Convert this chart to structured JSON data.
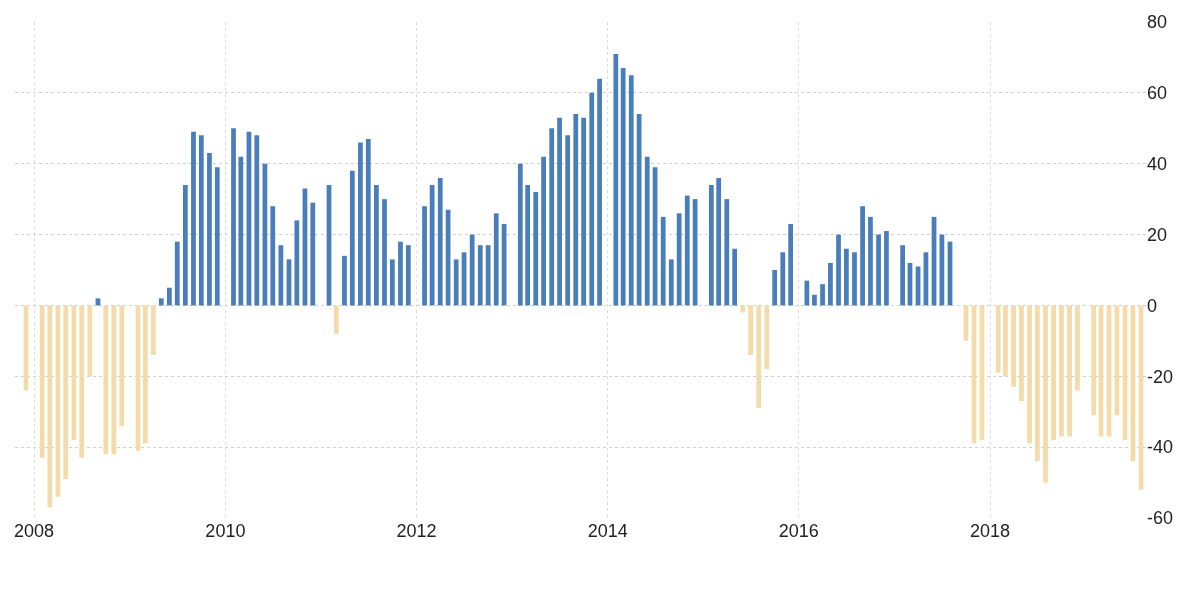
{
  "chart_data": {
    "type": "bar",
    "x": [
      "2007-12",
      "2008-01",
      "2008-02",
      "2008-03",
      "2008-04",
      "2008-05",
      "2008-06",
      "2008-07",
      "2008-08",
      "2008-09",
      "2008-10",
      "2008-11",
      "2008-12",
      "2009-01",
      "2009-02",
      "2009-03",
      "2009-04",
      "2009-05",
      "2009-06",
      "2009-07",
      "2009-08",
      "2009-09",
      "2009-10",
      "2009-11",
      "2009-12",
      "2010-01",
      "2010-02",
      "2010-03",
      "2010-04",
      "2010-05",
      "2010-06",
      "2010-07",
      "2010-08",
      "2010-09",
      "2010-10",
      "2010-11",
      "2010-12",
      "2011-01",
      "2011-02",
      "2011-03",
      "2011-04",
      "2011-05",
      "2011-06",
      "2011-07",
      "2011-08",
      "2011-09",
      "2011-10",
      "2011-11",
      "2011-12",
      "2012-01",
      "2012-02",
      "2012-03",
      "2012-04",
      "2012-05",
      "2012-06",
      "2012-07",
      "2012-08",
      "2012-09",
      "2012-10",
      "2012-11",
      "2012-12",
      "2013-01",
      "2013-02",
      "2013-03",
      "2013-04",
      "2013-05",
      "2013-06",
      "2013-07",
      "2013-08",
      "2013-09",
      "2013-10",
      "2013-11",
      "2013-12",
      "2014-01",
      "2014-02",
      "2014-03",
      "2014-04",
      "2014-05",
      "2014-06",
      "2014-07",
      "2014-08",
      "2014-09",
      "2014-10",
      "2014-11",
      "2014-12",
      "2015-01",
      "2015-02",
      "2015-03",
      "2015-04",
      "2015-05",
      "2015-06",
      "2015-07",
      "2015-08",
      "2015-09",
      "2015-10",
      "2015-11",
      "2015-12",
      "2016-01",
      "2016-02",
      "2016-03",
      "2016-04",
      "2016-05",
      "2016-06",
      "2016-07",
      "2016-08",
      "2016-09",
      "2016-10",
      "2016-11",
      "2016-12",
      "2017-01",
      "2017-02",
      "2017-03",
      "2017-04",
      "2017-05",
      "2017-06",
      "2017-07",
      "2017-08",
      "2017-09",
      "2017-10",
      "2017-11",
      "2017-12",
      "2018-01",
      "2018-02",
      "2018-03",
      "2018-04",
      "2018-05",
      "2018-06",
      "2018-07",
      "2018-08",
      "2018-09",
      "2018-10",
      "2018-11",
      "2018-12",
      "2019-01",
      "2019-02",
      "2019-03",
      "2019-04",
      "2019-05",
      "2019-06",
      "2019-07",
      "2019-08"
    ],
    "values": [
      -24,
      null,
      -43,
      -57,
      -54,
      -49,
      -38,
      -43,
      -20,
      2,
      -42,
      -42,
      -34,
      null,
      -41,
      -39,
      -14,
      2,
      5,
      18,
      34,
      49,
      48,
      43,
      39,
      null,
      50,
      42,
      49,
      48,
      40,
      28,
      17,
      13,
      24,
      33,
      29,
      null,
      34,
      -8,
      14,
      38,
      46,
      47,
      34,
      30,
      13,
      18,
      17,
      null,
      28,
      34,
      36,
      27,
      13,
      15,
      20,
      17,
      17,
      26,
      23,
      null,
      40,
      34,
      32,
      42,
      50,
      53,
      48,
      54,
      53,
      60,
      64,
      null,
      71,
      67,
      65,
      54,
      42,
      39,
      25,
      13,
      26,
      31,
      30,
      null,
      34,
      36,
      30,
      16,
      -2,
      -14,
      -29,
      -18,
      10,
      15,
      23,
      null,
      7,
      3,
      6,
      12,
      20,
      16,
      15,
      28,
      25,
      20,
      21,
      null,
      17,
      12,
      11,
      15,
      25,
      20,
      18,
      null,
      -10,
      -39,
      -38,
      null,
      -19,
      -20,
      -23,
      -27,
      -39,
      -44,
      -50,
      -38,
      -37,
      -37,
      -24,
      null,
      -31,
      -37,
      -37,
      -31,
      -38,
      -44,
      -52
    ],
    "colors": [
      "#f3dcaa",
      "#4a7ebb",
      "#f3dcaa",
      "#f3dcaa",
      "#f3dcaa",
      "#f3dcaa",
      "#f3dcaa",
      "#f3dcaa",
      "#f3dcaa",
      "#4a7ebb",
      "#f3dcaa",
      "#f3dcaa",
      "#f3dcaa",
      "#4a7ebb",
      "#f3dcaa",
      "#f3dcaa",
      "#f3dcaa",
      "#4a7ebb",
      "#4a7ebb",
      "#4a7ebb",
      "#4a7ebb",
      "#4a7ebb",
      "#4a7ebb",
      "#4a7ebb",
      "#4a7ebb",
      "#4a7ebb",
      "#4a7ebb",
      "#4a7ebb",
      "#4a7ebb",
      "#4a7ebb",
      "#4a7ebb",
      "#4a7ebb",
      "#4a7ebb",
      "#4a7ebb",
      "#4a7ebb",
      "#4a7ebb",
      "#4a7ebb",
      "#4a7ebb",
      "#4a7ebb",
      "#f3dcaa",
      "#4a7ebb",
      "#4a7ebb",
      "#4a7ebb",
      "#4a7ebb",
      "#4a7ebb",
      "#4a7ebb",
      "#4a7ebb",
      "#4a7ebb",
      "#4a7ebb",
      "#4a7ebb",
      "#4a7ebb",
      "#4a7ebb",
      "#4a7ebb",
      "#4a7ebb",
      "#4a7ebb",
      "#4a7ebb",
      "#4a7ebb",
      "#4a7ebb",
      "#4a7ebb",
      "#4a7ebb",
      "#4a7ebb",
      "#4a7ebb",
      "#4a7ebb",
      "#4a7ebb",
      "#4a7ebb",
      "#4a7ebb",
      "#4a7ebb",
      "#4a7ebb",
      "#4a7ebb",
      "#4a7ebb",
      "#4a7ebb",
      "#4a7ebb",
      "#4a7ebb",
      "#4a7ebb",
      "#4a7ebb",
      "#4a7ebb",
      "#4a7ebb",
      "#4a7ebb",
      "#4a7ebb",
      "#4a7ebb",
      "#4a7ebb",
      "#4a7ebb",
      "#4a7ebb",
      "#4a7ebb",
      "#4a7ebb",
      "#4a7ebb",
      "#4a7ebb",
      "#4a7ebb",
      "#4a7ebb",
      "#4a7ebb",
      "#f3dcaa",
      "#f3dcaa",
      "#f3dcaa",
      "#f3dcaa",
      "#4a7ebb",
      "#4a7ebb",
      "#4a7ebb",
      "#4a7ebb",
      "#4a7ebb",
      "#4a7ebb",
      "#4a7ebb",
      "#4a7ebb",
      "#4a7ebb",
      "#4a7ebb",
      "#4a7ebb",
      "#4a7ebb",
      "#4a7ebb",
      "#4a7ebb",
      "#4a7ebb",
      "#4a7ebb",
      "#4a7ebb",
      "#4a7ebb",
      "#4a7ebb",
      "#4a7ebb",
      "#4a7ebb",
      "#4a7ebb",
      "#4a7ebb",
      "#4a7ebb",
      "#f3dcaa",
      "#f3dcaa",
      "#f3dcaa",
      "#4a7ebb",
      "#f3dcaa",
      "#f3dcaa",
      "#f3dcaa",
      "#f3dcaa",
      "#f3dcaa",
      "#f3dcaa",
      "#f3dcaa",
      "#f3dcaa",
      "#f3dcaa",
      "#f3dcaa",
      "#f3dcaa",
      "#4a7ebb",
      "#f3dcaa",
      "#f3dcaa",
      "#f3dcaa",
      "#f3dcaa",
      "#f3dcaa",
      "#f3dcaa",
      "#f3dcaa"
    ],
    "xlim": [
      "2007-10-20",
      "2019-08-20"
    ],
    "xticks": [
      {
        "value": "2008-01-01",
        "label": "2008"
      },
      {
        "value": "2010-01-01",
        "label": "2010"
      },
      {
        "value": "2012-01-01",
        "label": "2012"
      },
      {
        "value": "2014-01-01",
        "label": "2014"
      },
      {
        "value": "2016-01-01",
        "label": "2016"
      },
      {
        "value": "2018-01-01",
        "label": "2018"
      }
    ],
    "ylim": [
      -60,
      80
    ],
    "yticks": [
      -60,
      -40,
      -20,
      0,
      20,
      40,
      60,
      80
    ],
    "grid": true
  }
}
